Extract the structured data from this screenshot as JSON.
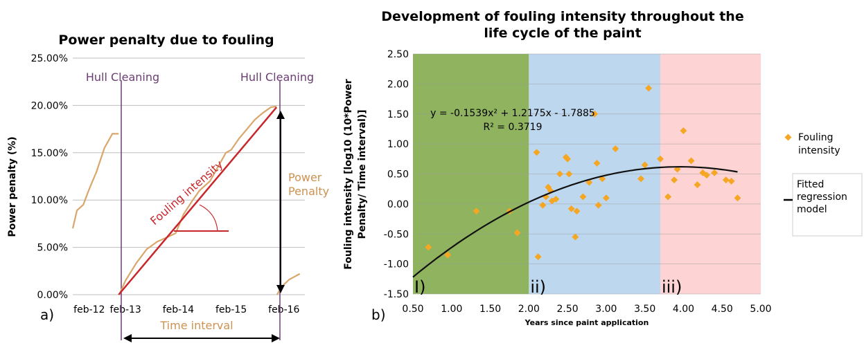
{
  "chart_data": [
    {
      "type": "line",
      "panel_label": "a)",
      "title": "Power penalty due to fouling",
      "xlabel": "Time interval",
      "ylabel": "Power penalty (%)",
      "x_ticks": [
        "feb-12",
        "feb-13",
        "feb-14",
        "feb-15",
        "feb-16"
      ],
      "y_ticks": [
        "0.00%",
        "5.00%",
        "10.00%",
        "15.00%",
        "20.00%",
        "25.00%"
      ],
      "ylim": [
        0,
        25
      ],
      "grid": "horizontal",
      "series": [
        {
          "color": "#d9a66b",
          "x": [
            0.0,
            0.08,
            0.2,
            0.3,
            0.45,
            0.6,
            0.75,
            0.87,
            0.88,
            1.0,
            1.2,
            1.4,
            1.6,
            1.8,
            1.95,
            2.1,
            2.25,
            2.4,
            2.6,
            2.8,
            2.9,
            3.0,
            3.15,
            3.3,
            3.45,
            3.6,
            3.75,
            3.86,
            3.87,
            3.95,
            4.1,
            4.3
          ],
          "y": [
            7.0,
            8.9,
            9.5,
            11.0,
            13.0,
            15.5,
            17.0,
            17.0,
            0.0,
            1.5,
            3.3,
            4.8,
            5.6,
            6.1,
            6.5,
            8.5,
            9.8,
            11.0,
            12.0,
            14.0,
            15.0,
            15.3,
            16.5,
            17.5,
            18.5,
            19.2,
            19.8,
            19.9,
            0.0,
            0.8,
            1.6,
            2.2
          ]
        },
        {
          "color": "#c8262b",
          "x": [
            0.87,
            3.86
          ],
          "y": [
            0.0,
            19.8
          ]
        }
      ],
      "annotations": {
        "hull_cleaning_1": "Hull Cleaning",
        "hull_cleaning_2": "Hull Cleaning",
        "fouling_intensity": "Fouling intensity",
        "power_penalty_line1": "Power",
        "power_penalty_line2": "Penalty"
      }
    },
    {
      "type": "scatter",
      "panel_label": "b)",
      "title_line1": "Development of fouling intensity throughout the",
      "title_line2": "life cycle of the paint",
      "xlabel": "Years since paint application",
      "ylabel_line1": "Fouling intensity [log10 (10*Power",
      "ylabel_line2": "Penalty/ Time interval)]",
      "xlim": [
        0.5,
        5.0
      ],
      "ylim": [
        -1.5,
        2.5
      ],
      "x_ticks": [
        "0.50",
        "1.00",
        "1.50",
        "2.00",
        "2.50",
        "3.00",
        "3.50",
        "4.00",
        "4.50",
        "5.00"
      ],
      "y_ticks": [
        "-1.50",
        "-1.00",
        "-0.50",
        "0.00",
        "0.50",
        "1.00",
        "1.50",
        "2.00",
        "2.50"
      ],
      "grid": "horizontal",
      "regions": [
        {
          "label": "I)",
          "x": [
            0.5,
            2.0
          ],
          "color": "#8fb35f"
        },
        {
          "label": "ii)",
          "x": [
            2.0,
            3.7
          ],
          "color": "#bdd7ee"
        },
        {
          "label": "iii)",
          "x": [
            3.7,
            5.0
          ],
          "color": "#fdd3d3"
        }
      ],
      "points": {
        "x": [
          0.7,
          0.95,
          1.32,
          1.75,
          1.85,
          2.1,
          2.12,
          2.18,
          2.22,
          2.25,
          2.28,
          2.3,
          2.35,
          2.4,
          2.48,
          2.5,
          2.52,
          2.55,
          2.6,
          2.62,
          2.7,
          2.78,
          2.85,
          2.88,
          2.9,
          2.95,
          3.0,
          3.12,
          3.45,
          3.5,
          3.55,
          3.7,
          3.8,
          3.88,
          3.92,
          4.0,
          4.1,
          4.18,
          4.25,
          4.3,
          4.4,
          4.55,
          4.62,
          4.7
        ],
        "y": [
          -0.72,
          -0.85,
          -0.12,
          -0.12,
          -0.48,
          0.86,
          -0.88,
          -0.02,
          0.12,
          0.28,
          0.22,
          0.05,
          0.08,
          0.5,
          0.78,
          0.75,
          0.5,
          -0.08,
          -0.55,
          -0.12,
          0.12,
          0.36,
          1.5,
          0.68,
          -0.02,
          0.42,
          0.1,
          0.92,
          0.42,
          0.65,
          1.93,
          0.75,
          0.12,
          0.4,
          0.58,
          1.22,
          0.72,
          0.32,
          0.52,
          0.48,
          0.52,
          0.4,
          0.38,
          0.1
        ],
        "color": "#f5a623"
      },
      "regression": {
        "a": -0.1539,
        "b": 1.2175,
        "c": -1.7885
      },
      "equation": "y = -0.1539x² + 1.2175x - 1.7885",
      "r_squared": "R² = 0.3719",
      "legend": {
        "marker_label_line1": "Fouling",
        "marker_label_line2": "intensity",
        "line_label_line1": "Fitted",
        "line_label_line2": "regression",
        "line_label_line3": "model",
        "placement": "right"
      }
    }
  ]
}
